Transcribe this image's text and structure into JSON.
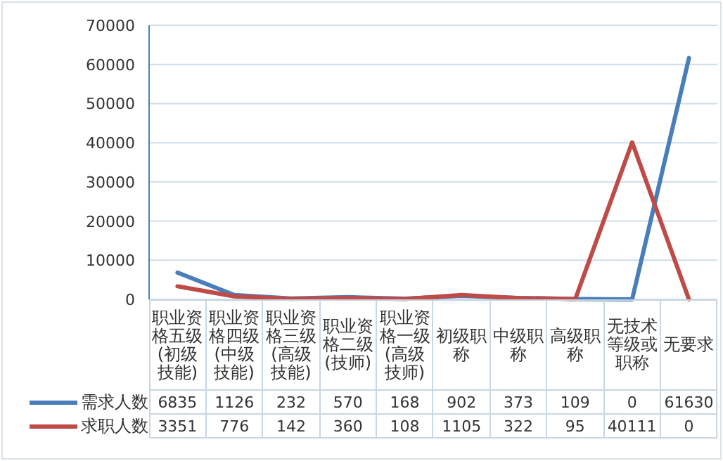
{
  "chart_data": {
    "type": "line",
    "categories": [
      "职业资格五级(初级技能)",
      "职业资格四级(中级技能)",
      "职业资格三级(高级技能)",
      "职业资格二级(技师)",
      "职业资格一级(高级技师)",
      "初级职称",
      "中级职称",
      "高级职称",
      "无技术等级或职称",
      "无要求"
    ],
    "series": [
      {
        "name": "需求人数",
        "color": "#4a7ebb",
        "values": [
          6835,
          1126,
          232,
          570,
          168,
          902,
          373,
          109,
          0,
          61630
        ]
      },
      {
        "name": "求职人数",
        "color": "#be4b48",
        "values": [
          3351,
          776,
          142,
          360,
          108,
          1105,
          322,
          95,
          40111,
          0
        ]
      }
    ],
    "ylim": [
      0,
      70000
    ],
    "yticks": [
      0,
      10000,
      20000,
      30000,
      40000,
      50000,
      60000,
      70000
    ],
    "grid": "y",
    "data_labels": true,
    "legend": "bottom",
    "marker": "none",
    "line_style": "solid"
  }
}
